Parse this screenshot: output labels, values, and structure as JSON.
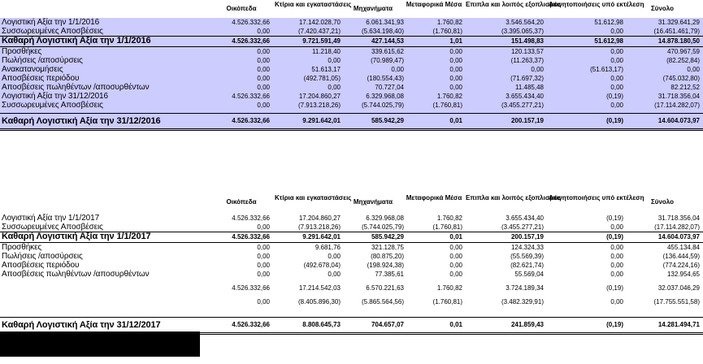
{
  "columns": [
    "Οικόπεδα",
    "Κτίρια και εγκαταστάσεις",
    "Μηχανήματα",
    "Μεταφορικά Μέσα",
    "Επιπλα και λοιπός εξοπλισμός",
    "Ακινητοποιήσεις υπό εκτέλεση",
    "Σύνολο"
  ],
  "table2016": {
    "rows": [
      {
        "label": "Λογιστική Αξία την 1/1/2016",
        "values": [
          "4.526.332,66",
          "17.142.028,70",
          "6.061.341,93",
          "1.760,82",
          "3.546.564,20",
          "51.612,98",
          "31.329.641,29"
        ]
      },
      {
        "label": "Συσσωρευμένες Αποσβέσεις",
        "values": [
          "0,00",
          "(7.420.437,21)",
          "(5.634.198,40)",
          "(1.760,81)",
          "(3.395.065,37)",
          "0,00",
          "(16.451.461,79)"
        ]
      },
      {
        "label": "Καθαρή Λογιστική Αξία την 1/1/2016",
        "values": [
          "4.526.332,66",
          "9.721.591,49",
          "427.144,53",
          "1,01",
          "151.498,83",
          "51.612,98",
          "14.878.180,50"
        ]
      },
      {
        "label": "Προσθήκες",
        "values": [
          "0,00",
          "11.218,40",
          "339.615,62",
          "0,00",
          "120.133,57",
          "0,00",
          "470.967,59"
        ]
      },
      {
        "label": "Πωλήσεις /αποσύρσεις",
        "values": [
          "0,00",
          "0,00",
          "(70.989,47)",
          "0,00",
          "(11.263,37)",
          "0,00",
          "(82.252,84)"
        ]
      },
      {
        "label": "Ανακατανομήσεις",
        "values": [
          "0,00",
          "51.613,17",
          "0,00",
          "0,00",
          "0,00",
          "(51.613,17)",
          "0,00"
        ]
      },
      {
        "label": "Αποσβέσεις περιόδου",
        "values": [
          "0,00",
          "(492.781,05)",
          "(180.554,43)",
          "0,00",
          "(71.697,32)",
          "0,00",
          "(745.032,80)"
        ]
      },
      {
        "label": "Αποσβέσεις πωληθέντων /αποσυρθέντων",
        "values": [
          "0,00",
          "0,00",
          "70.727,04",
          "0,00",
          "11.485,48",
          "0,00",
          "82.212,52"
        ]
      },
      {
        "label": "Λογιστική Αξία την 31/12/2016",
        "values": [
          "4.526.332,66",
          "17.204.860,27",
          "6.329.968,08",
          "1.760,82",
          "3.655.434,40",
          "(0,19)",
          "31.718.356,04"
        ]
      },
      {
        "label": "Συσσωρευμένες Αποσβέσεις",
        "values": [
          "0,00",
          "(7.913.218,26)",
          "(5.744.025,79)",
          "(1.760,81)",
          "(3.455.277,21)",
          "0,00",
          "(17.114.282,07)"
        ]
      },
      {
        "label": "Καθαρή Λογιστική Αξία την 31/12/2016",
        "values": [
          "4.526.332,66",
          "9.291.642,01",
          "585.942,29",
          "0,01",
          "200.157,19",
          "(0,19)",
          "14.604.073,97"
        ]
      }
    ]
  },
  "table2017": {
    "rows": [
      {
        "label": "Λογιστική Αξία την 1/1/2017",
        "values": [
          "4.526.332,66",
          "17.204.860,27",
          "6.329.968,08",
          "1.760,82",
          "3.655.434,40",
          "(0,19)",
          "31.718.356,04"
        ]
      },
      {
        "label": "Συσσωρευμένες Αποσβέσεις",
        "values": [
          "0,00",
          "(7.913.218,26)",
          "(5.744.025,79)",
          "(1.760,81)",
          "(3.455.277,21)",
          "0,00",
          "(17.114.282,07)"
        ]
      },
      {
        "label": "Καθαρή Λογιστική Αξία την 1/1/2017",
        "values": [
          "4.526.332,66",
          "9.291.642,01",
          "585.942,29",
          "0,01",
          "200.157,19",
          "(0,19)",
          "14.604.073,97"
        ]
      },
      {
        "label": "Προσθήκες",
        "values": [
          "0,00",
          "9.681,76",
          "321.128,75",
          "0,00",
          "124.324,33",
          "0,00",
          "455.134,84"
        ]
      },
      {
        "label": "Πωλήσεις /αποσύρσεις",
        "values": [
          "0,00",
          "0,00",
          "(80.875,20)",
          "0,00",
          "(55.569,39)",
          "0,00",
          "(136.444,59)"
        ]
      },
      {
        "label": "Αποσβέσεις περιόδου",
        "values": [
          "0,00",
          "(492.678,04)",
          "(198.924,38)",
          "0,00",
          "(82.621,74)",
          "0,00",
          "(774.224,16)"
        ]
      },
      {
        "label": "Αποσβέσεις πωληθέντων /αποσυρθέντων",
        "values": [
          "0,00",
          "0,00",
          "77.385,61",
          "0,00",
          "55.569,04",
          "0,00",
          "132.954,65"
        ]
      },
      {
        "label": "",
        "values": [
          "4.526.332,66",
          "17.214.542,03",
          "6.570.221,63",
          "1.760,82",
          "3.724.189,34",
          "(0,19)",
          "32.037.046,29"
        ]
      },
      {
        "label": "",
        "values": [
          "0,00",
          "(8.405.896,30)",
          "(5.865.564,56)",
          "(1.760,81)",
          "(3.482.329,91)",
          "0,00",
          "(17.755.551,58)"
        ]
      },
      {
        "label": "Καθαρή Λογιστική Αξία την 31/12/2017",
        "values": [
          "4.526.332,66",
          "8.808.645,73",
          "704.657,07",
          "0,01",
          "241.859,43",
          "(0,19)",
          "14.281.494,71"
        ]
      }
    ]
  }
}
